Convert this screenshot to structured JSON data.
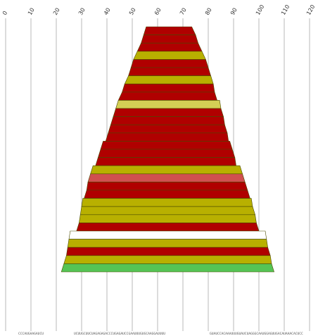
{
  "chart_data": {
    "type": "area",
    "x_axis": {
      "ticks": [
        0,
        10,
        20,
        30,
        40,
        50,
        60,
        70,
        80,
        90,
        100,
        110,
        120
      ],
      "range": [
        0,
        120
      ],
      "position": "top",
      "grid": true
    },
    "sequence_labels": [
      {
        "text": "CCCAUGAAGAUCU",
        "x": 10
      },
      {
        "text": "UCUUGCUUCUAGAGAGACCCUGAGAUCCGAAUUUGUGCAAGGAUUUU",
        "x": 45
      },
      {
        "text": "GUAUCCACAAAUUUGUAUCUAGGGCAAUGGAGUUGACAUAAACACUCC",
        "x": 99
      }
    ],
    "bands": [
      {
        "x_top": [
          55.5,
          73.5
        ],
        "x_bottom": [
          54.5,
          75.0
        ],
        "type": "stem"
      },
      {
        "x_top": [
          54.5,
          75.0
        ],
        "x_bottom": [
          53.5,
          76.0
        ],
        "type": "stem"
      },
      {
        "x_top": [
          53.5,
          76.0
        ],
        "x_bottom": [
          52.0,
          77.5
        ],
        "type": "stem"
      },
      {
        "x_top": [
          52.0,
          77.5
        ],
        "x_bottom": [
          50.5,
          79.0
        ],
        "type": "bulge"
      },
      {
        "x_top": [
          50.5,
          79.0
        ],
        "x_bottom": [
          49.5,
          80.0
        ],
        "type": "stem"
      },
      {
        "x_top": [
          49.5,
          80.0
        ],
        "x_bottom": [
          48.5,
          81.0
        ],
        "type": "stem"
      },
      {
        "x_top": [
          48.5,
          81.0
        ],
        "x_bottom": [
          47.0,
          82.0
        ],
        "type": "bulge"
      },
      {
        "x_top": [
          47.0,
          82.0
        ],
        "x_bottom": [
          46.0,
          82.5
        ],
        "type": "stem"
      },
      {
        "x_top": [
          46.0,
          82.5
        ],
        "x_bottom": [
          44.5,
          83.5
        ],
        "type": "stem"
      },
      {
        "x_top": [
          44.5,
          84.5
        ],
        "x_bottom": [
          43.5,
          85.0
        ],
        "type": "loop"
      },
      {
        "x_top": [
          43.5,
          85.0
        ],
        "x_bottom": [
          42.5,
          86.0
        ],
        "type": "stem"
      },
      {
        "x_top": [
          42.5,
          86.0
        ],
        "x_bottom": [
          41.5,
          86.5
        ],
        "type": "stem"
      },
      {
        "x_top": [
          41.5,
          86.5
        ],
        "x_bottom": [
          40.5,
          87.5
        ],
        "type": "stem"
      },
      {
        "x_top": [
          40.5,
          87.5
        ],
        "x_bottom": [
          39.5,
          88.0
        ],
        "type": "stem"
      },
      {
        "x_top": [
          38.5,
          88.5
        ],
        "x_bottom": [
          37.5,
          89.5
        ],
        "type": "stem"
      },
      {
        "x_top": [
          37.5,
          89.5
        ],
        "x_bottom": [
          36.5,
          90.5
        ],
        "type": "stem"
      },
      {
        "x_top": [
          36.5,
          90.5
        ],
        "x_bottom": [
          35.5,
          91.0
        ],
        "type": "stem"
      },
      {
        "x_top": [
          34.5,
          92.5
        ],
        "x_bottom": [
          33.5,
          93.5
        ],
        "type": "bulge"
      },
      {
        "x_top": [
          33.5,
          93.5
        ],
        "x_bottom": [
          32.5,
          94.5
        ],
        "type": "internal"
      },
      {
        "x_top": [
          32.5,
          94.5
        ],
        "x_bottom": [
          32.0,
          95.5
        ],
        "type": "stem"
      },
      {
        "x_top": [
          32.0,
          95.5
        ],
        "x_bottom": [
          31.0,
          96.5
        ],
        "type": "stem"
      },
      {
        "x_top": [
          30.5,
          97.0
        ],
        "x_bottom": [
          30.0,
          97.5
        ],
        "type": "bulge"
      },
      {
        "x_top": [
          30.0,
          97.5
        ],
        "x_bottom": [
          29.5,
          98.5
        ],
        "type": "bulge"
      },
      {
        "x_top": [
          29.5,
          98.5
        ],
        "x_bottom": [
          29.0,
          99.0
        ],
        "type": "bulge"
      },
      {
        "x_top": [
          29.0,
          99.0
        ],
        "x_bottom": [
          28.0,
          100.0
        ],
        "type": "stem"
      },
      {
        "x_top": [
          25.5,
          102.5
        ],
        "x_bottom": [
          25.0,
          103.0
        ],
        "type": "gap"
      },
      {
        "x_top": [
          25.0,
          103.0
        ],
        "x_bottom": [
          24.5,
          103.5
        ],
        "type": "bulge"
      },
      {
        "x_top": [
          24.5,
          103.5
        ],
        "x_bottom": [
          24.0,
          104.5
        ],
        "type": "stem"
      },
      {
        "x_top": [
          24.0,
          104.5
        ],
        "x_bottom": [
          23.0,
          105.0
        ],
        "type": "bulge"
      },
      {
        "x_top": [
          23.0,
          105.0
        ],
        "x_bottom": [
          22.0,
          106.0
        ],
        "type": "terminal"
      }
    ],
    "colors": {
      "stem": "#b00000",
      "bulge": "#b8b000",
      "loop": "#d4cf55",
      "internal": "#d05050",
      "gap": "#ffffff",
      "terminal": "#55c455"
    }
  }
}
